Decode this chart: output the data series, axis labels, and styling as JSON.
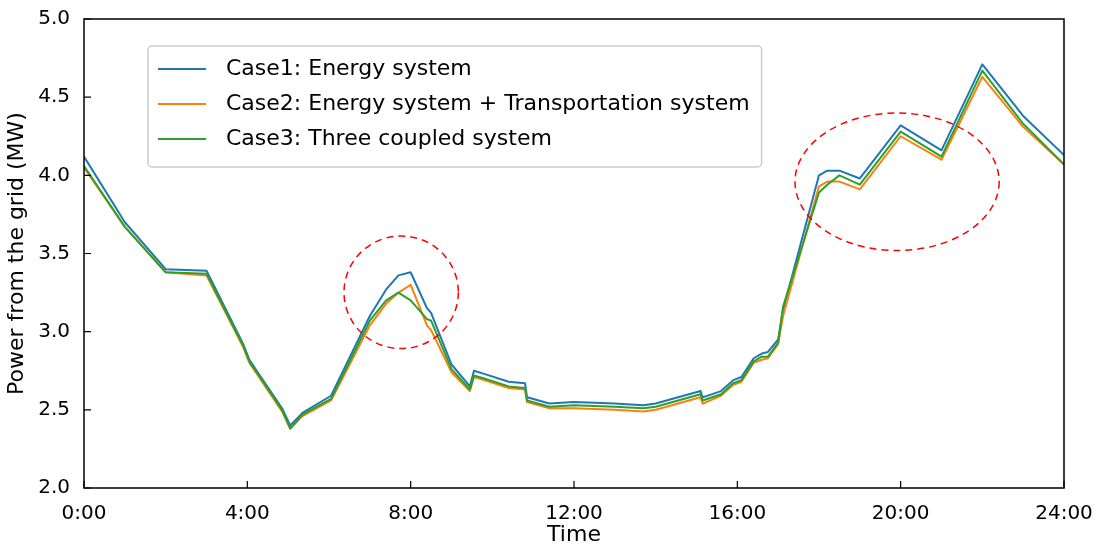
{
  "chart_data": {
    "type": "line",
    "xlabel": "Time",
    "ylabel": "Power from the grid (MW)",
    "x": [
      0,
      1,
      2,
      3,
      3.9,
      4.05,
      4.85,
      5.05,
      5.35,
      6.05,
      7.0,
      7.4,
      7.7,
      8.0,
      8.4,
      8.5,
      9.0,
      9.45,
      9.55,
      9.8,
      10.4,
      10.8,
      10.85,
      11.4,
      12.0,
      13.0,
      13.7,
      14.0,
      15.1,
      15.15,
      15.6,
      15.9,
      16.1,
      16.4,
      16.6,
      16.75,
      17.0,
      17.12,
      18.0,
      18.2,
      18.5,
      19.0,
      20.0,
      21.0,
      22.0,
      23.0,
      24.0
    ],
    "series": [
      {
        "name": "Case1: Energy system",
        "color": "#1f77b4",
        "values": [
          4.12,
          3.7,
          3.4,
          3.39,
          2.92,
          2.82,
          2.51,
          2.4,
          2.48,
          2.59,
          3.1,
          3.27,
          3.36,
          3.38,
          3.15,
          3.12,
          2.79,
          2.65,
          2.75,
          2.73,
          2.68,
          2.67,
          2.58,
          2.54,
          2.55,
          2.54,
          2.53,
          2.54,
          2.62,
          2.58,
          2.62,
          2.69,
          2.71,
          2.83,
          2.86,
          2.87,
          2.95,
          3.14,
          4.0,
          4.03,
          4.03,
          3.98,
          4.32,
          4.16,
          4.71,
          4.38,
          4.13
        ]
      },
      {
        "name": "Case2: Energy system + Transportation system",
        "color": "#ff7f0e",
        "values": [
          4.05,
          3.67,
          3.38,
          3.36,
          2.9,
          2.8,
          2.49,
          2.38,
          2.46,
          2.56,
          3.04,
          3.18,
          3.25,
          3.3,
          3.04,
          3.01,
          2.74,
          2.62,
          2.71,
          2.69,
          2.64,
          2.63,
          2.55,
          2.51,
          2.51,
          2.5,
          2.49,
          2.5,
          2.58,
          2.54,
          2.59,
          2.66,
          2.68,
          2.8,
          2.82,
          2.83,
          2.92,
          3.1,
          3.93,
          3.96,
          3.96,
          3.91,
          4.25,
          4.1,
          4.63,
          4.31,
          4.07
        ]
      },
      {
        "name": "Case3: Three coupled system",
        "color": "#2ca02c",
        "values": [
          4.06,
          3.67,
          3.38,
          3.37,
          2.91,
          2.81,
          2.5,
          2.38,
          2.47,
          2.57,
          3.07,
          3.2,
          3.25,
          3.2,
          3.08,
          3.07,
          2.76,
          2.63,
          2.72,
          2.7,
          2.65,
          2.64,
          2.56,
          2.52,
          2.53,
          2.52,
          2.51,
          2.52,
          2.6,
          2.56,
          2.6,
          2.67,
          2.69,
          2.81,
          2.84,
          2.84,
          2.93,
          3.16,
          3.89,
          3.94,
          4.0,
          3.94,
          4.28,
          4.12,
          4.67,
          4.33,
          4.07
        ]
      }
    ],
    "xlim": [
      0,
      24
    ],
    "xticks": [
      {
        "value": 0,
        "label": "0:00"
      },
      {
        "value": 4,
        "label": "4:00"
      },
      {
        "value": 8,
        "label": "8:00"
      },
      {
        "value": 12,
        "label": "12:00"
      },
      {
        "value": 16,
        "label": "16:00"
      },
      {
        "value": 20,
        "label": "20:00"
      },
      {
        "value": 24,
        "label": "24:00"
      }
    ],
    "ylim": [
      2.0,
      5.0
    ],
    "yticks": [
      {
        "value": 2.0,
        "label": "2.0"
      },
      {
        "value": 2.5,
        "label": "2.5"
      },
      {
        "value": 3.0,
        "label": "3.0"
      },
      {
        "value": 3.5,
        "label": "3.5"
      },
      {
        "value": 4.0,
        "label": "4.0"
      },
      {
        "value": 4.5,
        "label": "4.5"
      },
      {
        "value": 5.0,
        "label": "5.0"
      }
    ],
    "legend": "top left",
    "marker": "none",
    "line_style": "solid"
  }
}
